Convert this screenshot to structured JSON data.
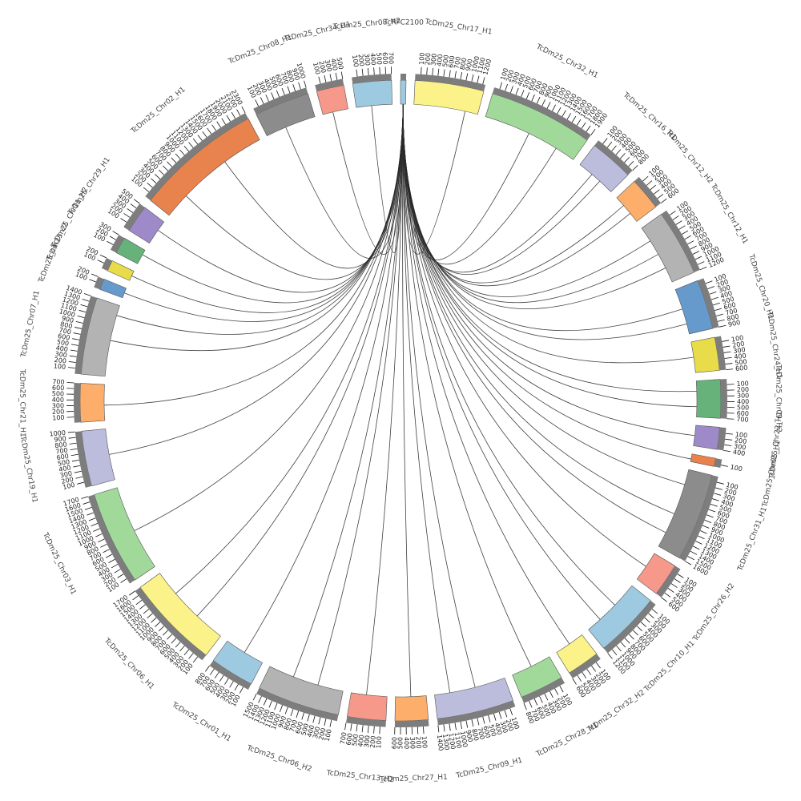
{
  "chart_data": {
    "type": "chord",
    "link_color": "#2b2b2b",
    "segments": [
      {
        "name": "TcRFC2100",
        "color": "#9ecae1",
        "length": 100,
        "ticks": []
      },
      {
        "name": "TcDm25_Chr17_H1",
        "color": "#fbf38a",
        "length": 1250,
        "ticks": [
          100,
          200,
          300,
          400,
          500,
          600,
          700,
          800,
          900,
          1000,
          1100,
          1200
        ]
      },
      {
        "name": "TcDm25_Chr32_H1",
        "color": "#a1d99b",
        "length": 1900,
        "ticks": [
          100,
          200,
          300,
          400,
          500,
          600,
          700,
          800,
          900,
          1000,
          1100,
          1200,
          1300,
          1400,
          1500,
          1600,
          1700,
          1800,
          1900
        ]
      },
      {
        "name": "TcDm25_Chr16_H1",
        "color": "#bcbddc",
        "length": 800,
        "ticks": [
          100,
          200,
          300,
          400,
          500,
          600,
          700,
          800
        ]
      },
      {
        "name": "TcDm25_Chr12_H2",
        "color": "#fdae6b",
        "length": 600,
        "ticks": [
          100,
          200,
          300,
          400,
          500,
          600
        ]
      },
      {
        "name": "TcDm25_Chr12_H1",
        "color": "#b3b3b3",
        "length": 1200,
        "ticks": [
          100,
          200,
          300,
          400,
          500,
          600,
          700,
          800,
          900,
          1000,
          1100,
          1200
        ]
      },
      {
        "name": "TcDm25_Chr20_H1",
        "color": "#6699cc",
        "length": 900,
        "ticks": [
          100,
          200,
          300,
          400,
          500,
          600,
          700,
          800,
          900
        ]
      },
      {
        "name": "TcDm25_Chr24_H1",
        "color": "#e8dc4a",
        "length": 600,
        "ticks": [
          100,
          200,
          300,
          400,
          500,
          600
        ]
      },
      {
        "name": "TcDm25_Chr09_H2",
        "color": "#66b27a",
        "length": 700,
        "ticks": [
          100,
          200,
          300,
          400,
          500,
          600,
          700
        ]
      },
      {
        "name": "TcDm25_Chr22_H1",
        "color": "#9e8ac8",
        "length": 400,
        "ticks": [
          100,
          200,
          300,
          400
        ]
      },
      {
        "name": "TcDm25_Chr05_H1",
        "color": "#e8834e",
        "length": 150,
        "ticks": [
          100
        ]
      },
      {
        "name": "TcDm25_Chr31_H1",
        "color": "#8c8c8c",
        "length": 1600,
        "ticks": [
          100,
          200,
          300,
          400,
          500,
          600,
          700,
          800,
          900,
          1000,
          1100,
          1200,
          1300,
          1400,
          1500,
          1600
        ]
      },
      {
        "name": "TcDm25_Chr26_H2",
        "color": "#f7998a",
        "length": 600,
        "ticks": [
          100,
          200,
          300,
          400,
          500,
          600
        ]
      },
      {
        "name": "TcDm25_Chr10_H1",
        "color": "#9ecae1",
        "length": 1200,
        "ticks": [
          100,
          200,
          300,
          400,
          500,
          600,
          700,
          800,
          900,
          1000,
          1100,
          1200
        ]
      },
      {
        "name": "TcDm25_Chr32_H2",
        "color": "#fbf38a",
        "length": 600,
        "ticks": [
          100,
          200,
          300,
          400,
          500,
          600
        ]
      },
      {
        "name": "TcDm25_Chr28_H1",
        "color": "#a1d99b",
        "length": 800,
        "ticks": [
          100,
          200,
          300,
          400,
          500,
          600,
          700,
          800
        ]
      },
      {
        "name": "TcDm25_Chr09_H1",
        "color": "#bcbddc",
        "length": 1400,
        "ticks": [
          100,
          200,
          300,
          400,
          500,
          600,
          700,
          800,
          900,
          1000,
          1100,
          1200,
          1300,
          1400
        ]
      },
      {
        "name": "TcDm25_Chr27_H1",
        "color": "#fdae6b",
        "length": 600,
        "ticks": [
          100,
          200,
          300,
          400,
          500,
          600
        ]
      },
      {
        "name": "TcDm25_Chr13_H2",
        "color": "#f7998a",
        "length": 700,
        "ticks": [
          100,
          200,
          300,
          400,
          500,
          600,
          700
        ]
      },
      {
        "name": "TcDm25_Chr06_H2",
        "color": "#b3b3b3",
        "length": 1500,
        "ticks": [
          100,
          200,
          300,
          400,
          500,
          600,
          700,
          800,
          900,
          1000,
          1100,
          1200,
          1300,
          1400,
          1500
        ]
      },
      {
        "name": "TcDm25_Chr01_H1",
        "color": "#9ecae1",
        "length": 800,
        "ticks": [
          100,
          200,
          300,
          400,
          500,
          600,
          700,
          800
        ]
      },
      {
        "name": "TcDm25_Chr06_H1",
        "color": "#fbf38a",
        "length": 1700,
        "ticks": [
          100,
          200,
          300,
          400,
          500,
          600,
          700,
          800,
          900,
          1000,
          1100,
          1200,
          1300,
          1400,
          1500,
          1600,
          1700
        ]
      },
      {
        "name": "TcDm25_Chr03_H1",
        "color": "#a1d99b",
        "length": 1700,
        "ticks": [
          100,
          200,
          300,
          400,
          500,
          600,
          700,
          800,
          900,
          1000,
          1100,
          1200,
          1300,
          1400,
          1500,
          1600,
          1700
        ]
      },
      {
        "name": "TcDm25_Chr19_H1",
        "color": "#bcbddc",
        "length": 1000,
        "ticks": [
          100,
          200,
          300,
          400,
          500,
          600,
          700,
          800,
          900,
          1000
        ]
      },
      {
        "name": "TcDm25_Chr21_H1",
        "color": "#fdae6b",
        "length": 700,
        "ticks": [
          100,
          200,
          300,
          400,
          500,
          600,
          700
        ]
      },
      {
        "name": "TcDm25_Chr07_H1",
        "color": "#b3b3b3",
        "length": 1400,
        "ticks": [
          100,
          200,
          300,
          400,
          500,
          600,
          700,
          800,
          900,
          1000,
          1100,
          1200,
          1300,
          1400
        ]
      },
      {
        "name": "TcDm25_c1",
        "color": "#6699cc",
        "length": 200,
        "ticks": [
          100,
          200
        ]
      },
      {
        "name": "TcDm25_c2",
        "color": "#e8dc4a",
        "length": 200,
        "ticks": [
          100,
          200
        ]
      },
      {
        "name": "TcDm25_Chr11_H2",
        "color": "#66b27a",
        "length": 300,
        "ticks": [
          100,
          200,
          300
        ]
      },
      {
        "name": "TcDm25_Chr29_H1",
        "color": "#9e8ac8",
        "length": 500,
        "ticks": [
          100,
          200,
          300,
          400,
          500
        ]
      },
      {
        "name": "TcDm25_Chr02_H1",
        "color": "#e8834e",
        "length": 2300,
        "ticks": [
          100,
          200,
          300,
          400,
          500,
          600,
          700,
          800,
          900,
          1000,
          1100,
          1200,
          1300,
          1400,
          1500,
          1600,
          1700,
          1800,
          1900,
          2000,
          2100,
          2200,
          2300
        ]
      },
      {
        "name": "TcDm25_Chr08_H1",
        "color": "#8c8c8c",
        "length": 1000,
        "ticks": [
          100,
          200,
          300,
          400,
          500,
          600,
          700,
          800,
          900,
          1000
        ]
      },
      {
        "name": "TcDm25_Chr34_H1",
        "color": "#f7998a",
        "length": 500,
        "ticks": [
          100,
          200,
          300,
          400,
          500
        ]
      },
      {
        "name": "TcDm25_Chr08_H2",
        "color": "#9ecae1",
        "length": 700,
        "ticks": [
          100,
          200,
          300,
          400,
          500,
          600,
          700
        ]
      }
    ],
    "links": [
      {
        "target": "TcDm25_Chr17_H1",
        "position": 1000
      },
      {
        "target": "TcDm25_Chr32_H1",
        "position": 900
      },
      {
        "target": "TcDm25_Chr32_H1",
        "position": 1500
      },
      {
        "target": "TcDm25_Chr16_H1",
        "position": 300
      },
      {
        "target": "TcDm25_Chr16_H1",
        "position": 500
      },
      {
        "target": "TcDm25_Chr12_H2",
        "position": 200
      },
      {
        "target": "TcDm25_Chr12_H2",
        "position": 400
      },
      {
        "target": "TcDm25_Chr12_H1",
        "position": 300
      },
      {
        "target": "TcDm25_Chr12_H1",
        "position": 600
      },
      {
        "target": "TcDm25_Chr12_H1",
        "position": 900
      },
      {
        "target": "TcDm25_Chr20_H1",
        "position": 400
      },
      {
        "target": "TcDm25_Chr20_H1",
        "position": 700
      },
      {
        "target": "TcDm25_Chr24_H1",
        "position": 300
      },
      {
        "target": "TcDm25_Chr09_H2",
        "position": 200
      },
      {
        "target": "TcDm25_Chr09_H2",
        "position": 500
      },
      {
        "target": "TcDm25_Chr22_H1",
        "position": 200
      },
      {
        "target": "TcDm25_Chr05_H1",
        "position": 100
      },
      {
        "target": "TcDm25_Chr31_H1",
        "position": 300
      },
      {
        "target": "TcDm25_Chr31_H1",
        "position": 900
      },
      {
        "target": "TcDm25_Chr31_H1",
        "position": 1300
      },
      {
        "target": "TcDm25_Chr26_H2",
        "position": 300
      },
      {
        "target": "TcDm25_Chr10_H1",
        "position": 500
      },
      {
        "target": "TcDm25_Chr10_H1",
        "position": 900
      },
      {
        "target": "TcDm25_Chr32_H2",
        "position": 300
      },
      {
        "target": "TcDm25_Chr28_H1",
        "position": 400
      },
      {
        "target": "TcDm25_Chr09_H1",
        "position": 600
      },
      {
        "target": "TcDm25_Chr09_H1",
        "position": 1100
      },
      {
        "target": "TcDm25_Chr27_H1",
        "position": 300
      },
      {
        "target": "TcDm25_Chr13_H2",
        "position": 400
      },
      {
        "target": "TcDm25_Chr06_H2",
        "position": 500
      },
      {
        "target": "TcDm25_Chr06_H2",
        "position": 1000
      },
      {
        "target": "TcDm25_Chr01_H1",
        "position": 400
      },
      {
        "target": "TcDm25_Chr06_H1",
        "position": 600
      },
      {
        "target": "TcDm25_Chr06_H1",
        "position": 1200
      },
      {
        "target": "TcDm25_Chr03_H1",
        "position": 800
      },
      {
        "target": "TcDm25_Chr19_H1",
        "position": 500
      },
      {
        "target": "TcDm25_Chr21_H1",
        "position": 300
      },
      {
        "target": "TcDm25_Chr07_H1",
        "position": 700
      },
      {
        "target": "TcDm25_Chr07_H1",
        "position": 1200
      },
      {
        "target": "TcDm25_c1",
        "position": 100
      },
      {
        "target": "TcDm25_c2",
        "position": 100
      },
      {
        "target": "TcDm25_Chr11_H2",
        "position": 200
      },
      {
        "target": "TcDm25_Chr29_H1",
        "position": 300
      },
      {
        "target": "TcDm25_Chr02_H1",
        "position": 500
      },
      {
        "target": "TcDm25_Chr02_H1",
        "position": 1500
      },
      {
        "target": "TcDm25_Chr08_H1",
        "position": 400
      },
      {
        "target": "TcDm25_Chr34_H1",
        "position": 200
      },
      {
        "target": "TcDm25_Chr08_H2",
        "position": 300
      }
    ]
  }
}
